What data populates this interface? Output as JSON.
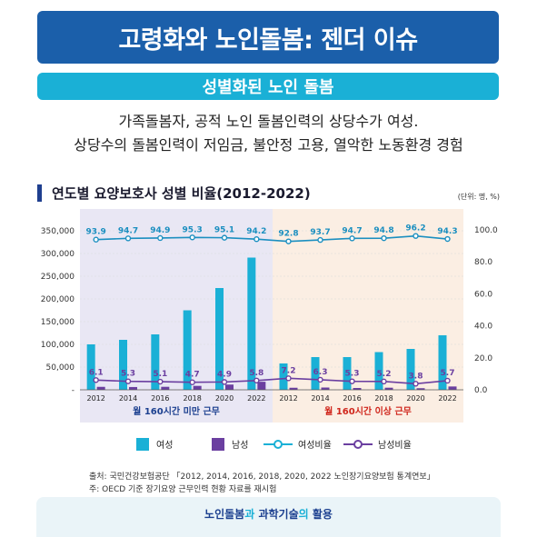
{
  "header": {
    "title": "고령화와 노인돌봄: 젠더 이슈",
    "subtitle": "성별화된 노인 돌봄",
    "desc1": "가족돌봄자, 공적 노인 돌봄인력의 상당수가 여성.",
    "desc2": "상당수의 돌봄인력이 저임금, 불안정 고용, 열악한 노동환경 경험"
  },
  "chart_title": "연도별 요양보호사 성별 비율(2012-2022)",
  "unit": "(단위: 명, %)",
  "groups": {
    "left_label": "월 160시간 미만 근무",
    "right_label": "월 160시간 이상 근무",
    "left_bg": "#e9e7f4",
    "right_bg": "#fbeee3",
    "right_label_color": "#d0261c"
  },
  "legend": {
    "female": "여성",
    "male": "남성",
    "female_ratio": "여성비율",
    "male_ratio": "남성비율"
  },
  "colors": {
    "female_bar": "#1ab0d6",
    "male_bar": "#6b3fa0",
    "female_line": "#1ab0d6",
    "male_line": "#6b3fa0"
  },
  "chart_data": {
    "type": "bar",
    "categories": [
      "2012",
      "2014",
      "2016",
      "2018",
      "2020",
      "2022",
      "2012",
      "2014",
      "2016",
      "2018",
      "2020",
      "2022"
    ],
    "series": [
      {
        "name": "여성",
        "values": [
          100000,
          110000,
          122000,
          175000,
          224000,
          291000,
          58000,
          72000,
          72000,
          83000,
          90000,
          120000
        ]
      },
      {
        "name": "남성",
        "values": [
          6500,
          6100,
          6600,
          8600,
          11500,
          17700,
          4500,
          5000,
          4000,
          4600,
          3500,
          7300
        ]
      },
      {
        "name": "여성비율",
        "values": [
          93.9,
          94.7,
          94.9,
          95.3,
          95.1,
          94.2,
          92.8,
          93.7,
          94.7,
          94.8,
          96.2,
          94.3
        ]
      },
      {
        "name": "남성비율",
        "values": [
          6.1,
          5.3,
          5.1,
          4.7,
          4.9,
          5.8,
          7.2,
          6.3,
          5.3,
          5.2,
          3.8,
          5.7
        ]
      }
    ],
    "ylim": [
      0,
      350000
    ],
    "y2lim": [
      0,
      100
    ],
    "yticks": [
      "350,000",
      "300,000",
      "250,000",
      "200,000",
      "150,000",
      "100,000",
      "50,000",
      "-"
    ],
    "y2ticks": [
      "100.0",
      "80.0",
      "60.0",
      "40.0",
      "20.0",
      "0.0"
    ]
  },
  "footnotes": {
    "line1": "출처: 국민건강보험공단 「2012, 2014, 2016, 2018, 2020, 2022 노인장기요양보험 통계연보」",
    "line2": "주: OECD 기준 장기요양 근무인력 현황 자료를 재시험"
  },
  "bottom": {
    "part1": "노인돌봄",
    "part2": "과",
    "part3": "과학기술",
    "part4": "의",
    "part5": "활용"
  }
}
